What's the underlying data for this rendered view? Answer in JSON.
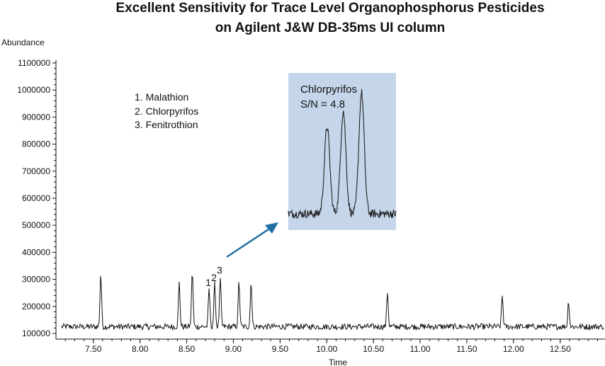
{
  "chart_data": {
    "type": "line",
    "title_line1": "Excellent Sensitivity for Trace Level Organophosphorus Pesticides",
    "title_line2": "on Agilent J&W DB-35ms UI column",
    "xlabel": "Time",
    "ylabel": "Abundance",
    "xlim": [
      7.1,
      12.98
    ],
    "ylim": [
      100000,
      1100000
    ],
    "x_ticks": [
      "7.50",
      "8.00",
      "8.50",
      "9.00",
      "9.50",
      "10.00",
      "10.50",
      "11.00",
      "11.50",
      "12.00",
      "12.50"
    ],
    "x_tick_values": [
      7.5,
      8.0,
      8.5,
      9.0,
      9.5,
      10.0,
      10.5,
      11.0,
      11.5,
      12.0,
      12.5
    ],
    "y_ticks": [
      "100000",
      "200000",
      "300000",
      "400000",
      "500000",
      "600000",
      "700000",
      "800000",
      "900000",
      "1000000",
      "1100000"
    ],
    "y_tick_values": [
      100000,
      200000,
      300000,
      400000,
      500000,
      600000,
      700000,
      800000,
      900000,
      1000000,
      1100000
    ],
    "baseline": 125000,
    "peaks": [
      {
        "x": 7.58,
        "y": 320000
      },
      {
        "x": 8.42,
        "y": 287000
      },
      {
        "x": 8.56,
        "y": 330000
      },
      {
        "x": 8.74,
        "y": 265000,
        "label": "1"
      },
      {
        "x": 8.8,
        "y": 283000,
        "label": "2"
      },
      {
        "x": 8.86,
        "y": 300000,
        "label": "3"
      },
      {
        "x": 9.06,
        "y": 290000
      },
      {
        "x": 9.19,
        "y": 293000
      },
      {
        "x": 10.65,
        "y": 255000
      },
      {
        "x": 11.88,
        "y": 240000
      },
      {
        "x": 12.59,
        "y": 220000
      }
    ],
    "legend": [
      "1.  Malathion",
      "2.  Chlorpyrifos",
      "3.  Fenitrothion"
    ],
    "inset": {
      "title": "Chlorpyrifos",
      "sn_text": "S/N = 4.8",
      "background": "#c5d6ea",
      "peak_heights": [
        0.62,
        0.73,
        0.86
      ]
    },
    "arrow_color": "#1f6fa3",
    "line_color": "#111111",
    "grid": false
  }
}
